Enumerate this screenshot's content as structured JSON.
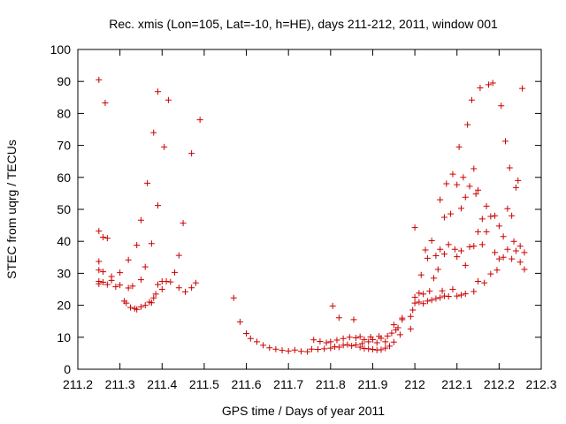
{
  "chart_data": {
    "type": "scatter",
    "title": "Rec. xmis (Lon=105, Lat=-10, h=HE), days 211-212, 2011, window 001",
    "xlabel": "GPS time / Days of year 2011",
    "ylabel": "STEC from uqrg / TECUs",
    "xlim": [
      211.2,
      212.3
    ],
    "ylim": [
      0,
      100
    ],
    "xticks": [
      "211.2",
      "211.3",
      "211.4",
      "211.5",
      "211.6",
      "211.7",
      "211.8",
      "211.9",
      "212",
      "212.1",
      "212.2",
      "212.3"
    ],
    "yticks": [
      "0",
      "10",
      "20",
      "30",
      "40",
      "50",
      "60",
      "70",
      "80",
      "90",
      "100"
    ],
    "grid": false,
    "marker": "plus",
    "color": "#cc0000",
    "points": [
      [
        211.25,
        90.5
      ],
      [
        211.265,
        83.3
      ],
      [
        211.25,
        43.2
      ],
      [
        211.26,
        41.3
      ],
      [
        211.27,
        41.0
      ],
      [
        211.25,
        33.7
      ],
      [
        211.25,
        31.0
      ],
      [
        211.26,
        30.5
      ],
      [
        211.25,
        27.5
      ],
      [
        211.26,
        27.2
      ],
      [
        211.25,
        26.7
      ],
      [
        211.27,
        26.5
      ],
      [
        211.28,
        27.8
      ],
      [
        211.28,
        29.0
      ],
      [
        211.29,
        25.8
      ],
      [
        211.3,
        30.2
      ],
      [
        211.3,
        26.3
      ],
      [
        211.31,
        21.3
      ],
      [
        211.315,
        20.7
      ],
      [
        211.32,
        25.4
      ],
      [
        211.32,
        34.2
      ],
      [
        211.325,
        19.3
      ],
      [
        211.33,
        26.0
      ],
      [
        211.335,
        19.0
      ],
      [
        211.34,
        18.7
      ],
      [
        211.34,
        38.8
      ],
      [
        211.35,
        19.5
      ],
      [
        211.35,
        28.0
      ],
      [
        211.35,
        46.6
      ],
      [
        211.36,
        20.0
      ],
      [
        211.36,
        32.0
      ],
      [
        211.365,
        58.2
      ],
      [
        211.37,
        21.0
      ],
      [
        211.375,
        20.8
      ],
      [
        211.375,
        39.3
      ],
      [
        211.38,
        22.3
      ],
      [
        211.38,
        74.0
      ],
      [
        211.385,
        23.5
      ],
      [
        211.39,
        26.5
      ],
      [
        211.39,
        51.2
      ],
      [
        211.39,
        86.8
      ],
      [
        211.4,
        25.0
      ],
      [
        211.4,
        27.5
      ],
      [
        211.405,
        69.5
      ],
      [
        211.41,
        27.5
      ],
      [
        211.415,
        84.2
      ],
      [
        211.42,
        27.3
      ],
      [
        211.43,
        30.3
      ],
      [
        211.44,
        25.5
      ],
      [
        211.44,
        35.6
      ],
      [
        211.45,
        45.7
      ],
      [
        211.455,
        24.2
      ],
      [
        211.47,
        67.5
      ],
      [
        211.47,
        25.5
      ],
      [
        211.48,
        27.0
      ],
      [
        211.49,
        78.0
      ],
      [
        211.57,
        22.3
      ],
      [
        211.585,
        14.8
      ],
      [
        211.6,
        11.2
      ],
      [
        211.61,
        9.6
      ],
      [
        211.625,
        8.6
      ],
      [
        211.64,
        7.5
      ],
      [
        211.655,
        6.7
      ],
      [
        211.67,
        6.3
      ],
      [
        211.685,
        5.9
      ],
      [
        211.7,
        5.7
      ],
      [
        211.715,
        6.0
      ],
      [
        211.73,
        5.6
      ],
      [
        211.745,
        5.5
      ],
      [
        211.755,
        6.3
      ],
      [
        211.76,
        9.2
      ],
      [
        211.77,
        6.2
      ],
      [
        211.775,
        8.7
      ],
      [
        211.785,
        6.4
      ],
      [
        211.79,
        8.3
      ],
      [
        211.8,
        6.6
      ],
      [
        211.8,
        8.6
      ],
      [
        211.805,
        19.8
      ],
      [
        211.81,
        7.0
      ],
      [
        211.815,
        9.1
      ],
      [
        211.82,
        16.1
      ],
      [
        211.82,
        6.9
      ],
      [
        211.83,
        7.5
      ],
      [
        211.83,
        9.6
      ],
      [
        211.84,
        7.7
      ],
      [
        211.845,
        10.0
      ],
      [
        211.85,
        7.3
      ],
      [
        211.855,
        15.5
      ],
      [
        211.86,
        7.6
      ],
      [
        211.86,
        9.8
      ],
      [
        211.87,
        6.9
      ],
      [
        211.87,
        10.2
      ],
      [
        211.875,
        8.0
      ],
      [
        211.88,
        6.5
      ],
      [
        211.88,
        9.3
      ],
      [
        211.89,
        6.4
      ],
      [
        211.89,
        8.6
      ],
      [
        211.895,
        10.1
      ],
      [
        211.9,
        6.2
      ],
      [
        211.9,
        9.3
      ],
      [
        211.91,
        6.0
      ],
      [
        211.91,
        8.3
      ],
      [
        211.915,
        10.3
      ],
      [
        211.92,
        6.1
      ],
      [
        211.92,
        9.7
      ],
      [
        211.93,
        6.6
      ],
      [
        211.93,
        8.6
      ],
      [
        211.935,
        10.4
      ],
      [
        211.94,
        7.2
      ],
      [
        211.945,
        11.3
      ],
      [
        211.95,
        8.5
      ],
      [
        211.95,
        13.9
      ],
      [
        211.955,
        12.3
      ],
      [
        211.96,
        13.0
      ],
      [
        211.965,
        10.8
      ],
      [
        211.97,
        16.0
      ],
      [
        211.97,
        15.5
      ],
      [
        211.99,
        12.6
      ],
      [
        211.99,
        16.5
      ],
      [
        211.995,
        18.5
      ],
      [
        212.0,
        20.7
      ],
      [
        212.0,
        22.5
      ],
      [
        212.0,
        44.3
      ],
      [
        212.01,
        21.0
      ],
      [
        212.01,
        23.8
      ],
      [
        212.015,
        29.5
      ],
      [
        212.02,
        20.5
      ],
      [
        212.02,
        23.5
      ],
      [
        212.025,
        37.3
      ],
      [
        212.03,
        21.3
      ],
      [
        212.03,
        34.7
      ],
      [
        212.035,
        24.4
      ],
      [
        212.04,
        21.6
      ],
      [
        212.04,
        40.2
      ],
      [
        212.045,
        28.5
      ],
      [
        212.05,
        22.1
      ],
      [
        212.05,
        35.5
      ],
      [
        212.055,
        31.2
      ],
      [
        212.06,
        22.4
      ],
      [
        212.06,
        37.5
      ],
      [
        212.06,
        53.0
      ],
      [
        212.065,
        24.5
      ],
      [
        212.07,
        22.9
      ],
      [
        212.07,
        36.0
      ],
      [
        212.07,
        47.5
      ],
      [
        212.075,
        58.0
      ],
      [
        212.08,
        22.8
      ],
      [
        212.08,
        39.0
      ],
      [
        212.085,
        48.6
      ],
      [
        212.09,
        61.0
      ],
      [
        212.09,
        25.0
      ],
      [
        212.095,
        37.5
      ],
      [
        212.1,
        22.9
      ],
      [
        212.1,
        35.2
      ],
      [
        212.1,
        57.7
      ],
      [
        212.105,
        69.5
      ],
      [
        212.11,
        23.2
      ],
      [
        212.11,
        37.0
      ],
      [
        212.11,
        50.3
      ],
      [
        212.115,
        60.0
      ],
      [
        212.12,
        23.6
      ],
      [
        212.12,
        32.5
      ],
      [
        212.12,
        53.8
      ],
      [
        212.125,
        76.5
      ],
      [
        212.13,
        38.3
      ],
      [
        212.13,
        57.2
      ],
      [
        212.135,
        84.2
      ],
      [
        212.14,
        24.3
      ],
      [
        212.14,
        38.5
      ],
      [
        212.14,
        62.7
      ],
      [
        212.145,
        54.8
      ],
      [
        212.15,
        27.5
      ],
      [
        212.15,
        43.0
      ],
      [
        212.15,
        56.0
      ],
      [
        212.155,
        88.0
      ],
      [
        212.16,
        39.0
      ],
      [
        212.16,
        47.0
      ],
      [
        212.165,
        27.0
      ],
      [
        212.17,
        43.0
      ],
      [
        212.17,
        51.0
      ],
      [
        212.175,
        89.0
      ],
      [
        212.18,
        29.8
      ],
      [
        212.18,
        47.8
      ],
      [
        212.185,
        89.5
      ],
      [
        212.19,
        36.5
      ],
      [
        212.19,
        48.0
      ],
      [
        212.195,
        31.0
      ],
      [
        212.2,
        34.5
      ],
      [
        212.2,
        44.8
      ],
      [
        212.205,
        82.4
      ],
      [
        212.21,
        35.0
      ],
      [
        212.21,
        41.5
      ],
      [
        212.215,
        71.3
      ],
      [
        212.22,
        37.5
      ],
      [
        212.22,
        50.2
      ],
      [
        212.225,
        63.0
      ],
      [
        212.23,
        34.5
      ],
      [
        212.23,
        48.0
      ],
      [
        212.235,
        40.0
      ],
      [
        212.24,
        37.0
      ],
      [
        212.24,
        56.8
      ],
      [
        212.245,
        59.0
      ],
      [
        212.25,
        33.5
      ],
      [
        212.25,
        38.5
      ],
      [
        212.255,
        87.8
      ],
      [
        212.26,
        31.2
      ],
      [
        212.26,
        36.5
      ]
    ]
  }
}
